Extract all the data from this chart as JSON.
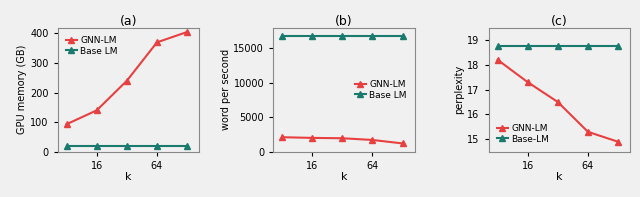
{
  "k_values": [
    8,
    16,
    32,
    64,
    128
  ],
  "subplot_a": {
    "title": "(a)",
    "xlabel": "k",
    "ylabel": "GPU memory (GB)",
    "gnn_lm": [
      93,
      140,
      240,
      370,
      405
    ],
    "base_lm": [
      18,
      18,
      18,
      18,
      18
    ],
    "gnn_color": "#e84040",
    "base_color": "#1a7a6e",
    "gnn_label": "GNN-LM",
    "base_label": "Base LM",
    "legend_loc": "upper left",
    "ylim": [
      0,
      420
    ]
  },
  "subplot_b": {
    "title": "(b)",
    "xlabel": "k",
    "ylabel": "word per second",
    "gnn_lm": [
      2100,
      2000,
      1950,
      1700,
      1200
    ],
    "base_lm": [
      16800,
      16800,
      16800,
      16800,
      16800
    ],
    "gnn_color": "#e84040",
    "base_color": "#1a7a6e",
    "gnn_label": "GNN-LM",
    "base_label": "Base LM",
    "legend_loc": "center right",
    "ylim": [
      0,
      18000
    ]
  },
  "subplot_c": {
    "title": "(c)",
    "xlabel": "k",
    "ylabel": "perplexity",
    "gnn_lm": [
      18.2,
      17.3,
      16.5,
      15.3,
      14.9
    ],
    "base_lm": [
      18.75,
      18.75,
      18.75,
      18.75,
      18.75
    ],
    "gnn_color": "#e84040",
    "base_color": "#1a7a6e",
    "gnn_label": "GNN-LM",
    "base_label": "Base-LM",
    "legend_loc": "lower left",
    "ylim": [
      14.5,
      19.5
    ]
  },
  "marker": "^",
  "linewidth": 1.5,
  "markersize": 4,
  "bg_color": "#f0f0f0"
}
